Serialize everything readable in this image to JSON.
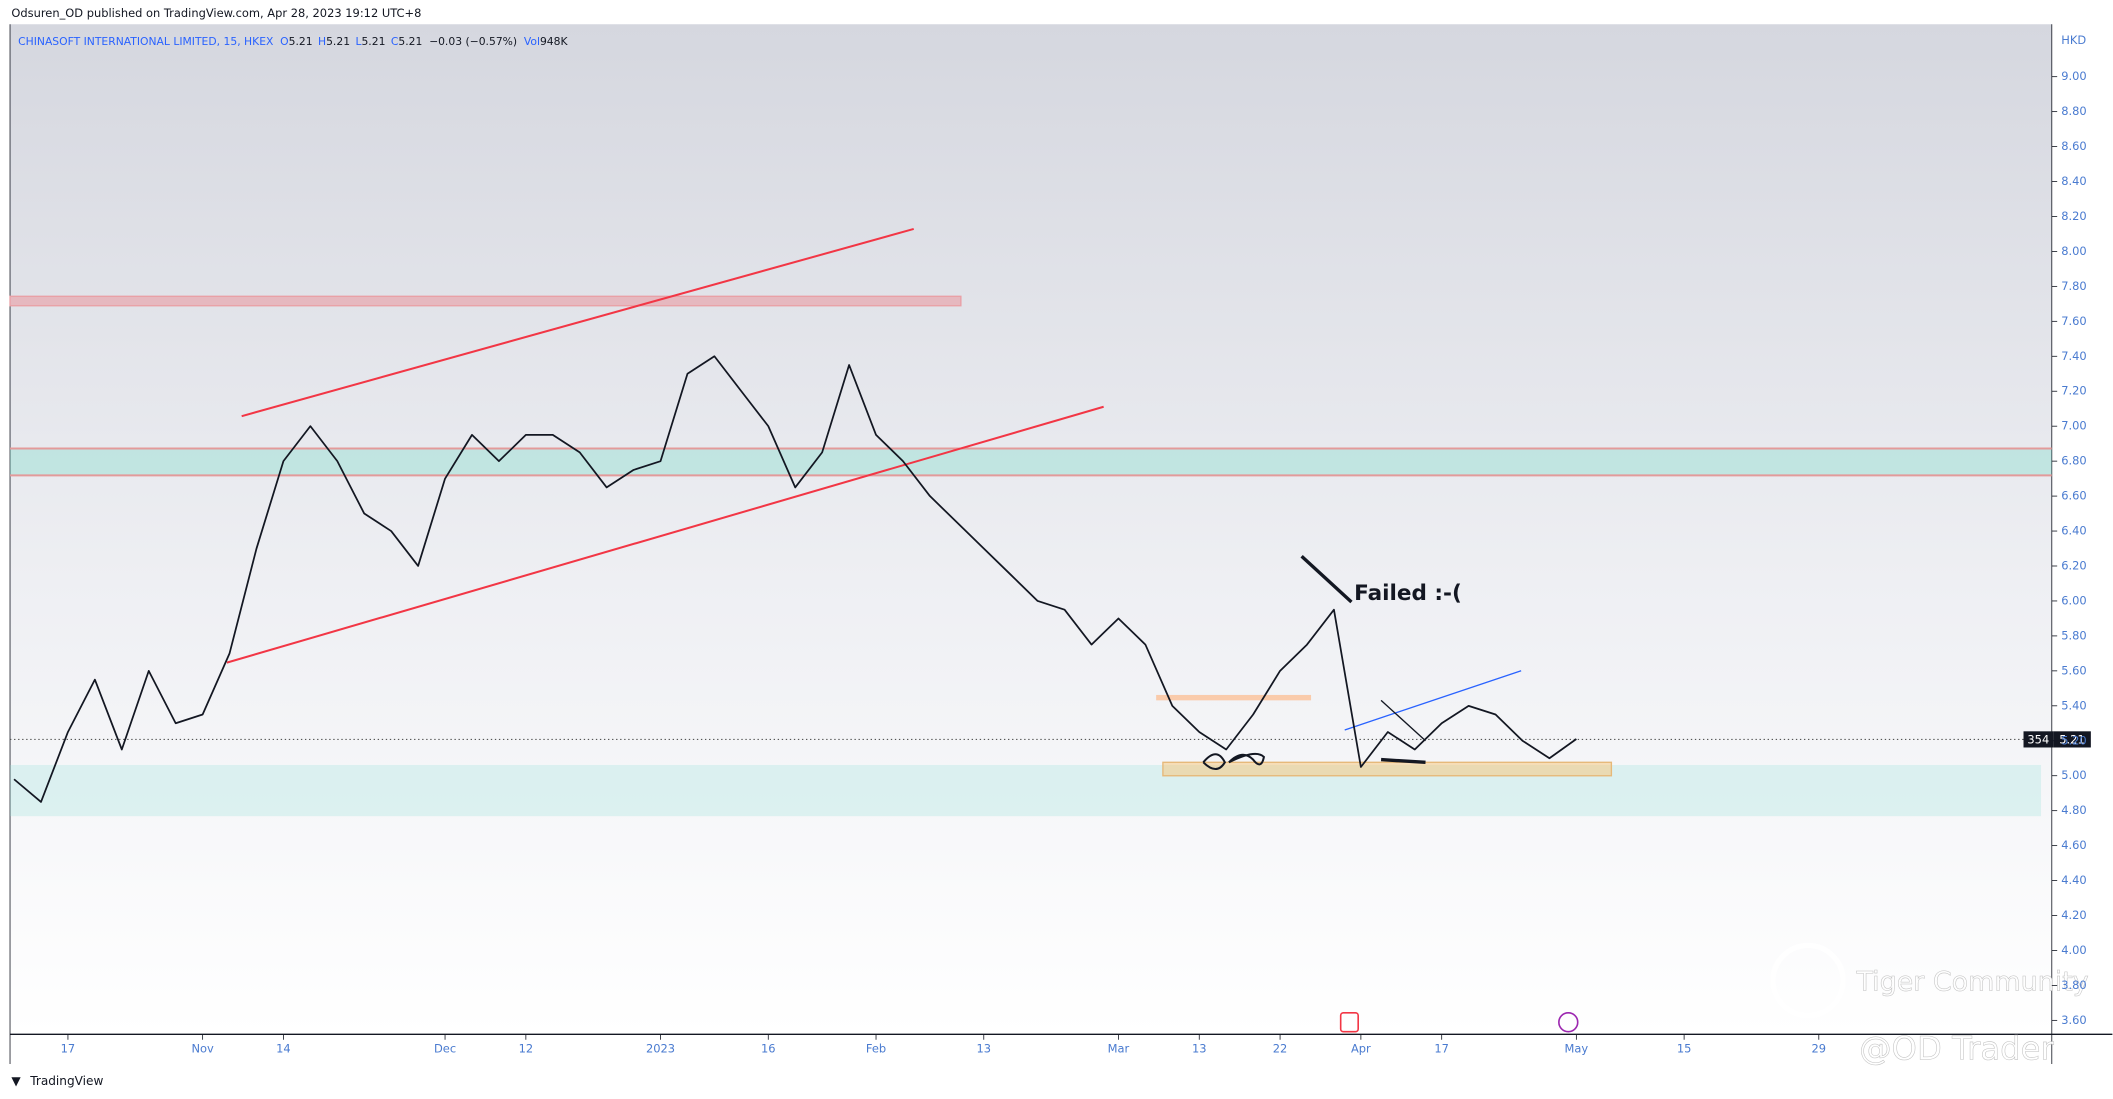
{
  "header": {
    "publisher": "Odsuren_OD published on TradingView.com, Apr 28, 2023 19:12 UTC+8",
    "footer": "TradingView"
  },
  "legend": {
    "name": "CHINASOFT INTERNATIONAL LIMITED, 15, HKEX",
    "items": [
      {
        "label": "O",
        "value": "5.21"
      },
      {
        "label": "H",
        "value": "5.21"
      },
      {
        "label": "L",
        "value": "5.21"
      },
      {
        "label": "C",
        "value": "5.21"
      }
    ],
    "change": "−0.03 (−0.57%)",
    "volume_label": "Vol",
    "volume": "948K"
  },
  "currency": "HKD",
  "price_tag": {
    "countdown": "354",
    "price": "5.21"
  },
  "annotation": "Failed :-(",
  "watermarks": [
    "Tiger Community",
    "@OD Trader"
  ],
  "chart_data": {
    "type": "line",
    "color": "#131722",
    "categories": [
      null,
      null,
      "17",
      null,
      null,
      null,
      null,
      "Nov",
      null,
      null,
      "14",
      null,
      null,
      null,
      null,
      null,
      "Dec",
      null,
      null,
      "12",
      null,
      null,
      null,
      null,
      "2023",
      null,
      null,
      null,
      "16",
      null,
      null,
      null,
      "Feb",
      null,
      null,
      null,
      "13",
      null,
      null,
      null,
      null,
      "Mar",
      null,
      null,
      "13",
      null,
      null,
      "22",
      null,
      null,
      "Apr",
      null,
      null,
      "17",
      null,
      null,
      null,
      null,
      "May",
      null,
      null,
      null,
      "15",
      null,
      null,
      null,
      null,
      "29",
      null,
      null,
      null,
      null,
      null,
      null,
      null,
      null
    ],
    "values": [
      4.98,
      4.85,
      5.25,
      5.55,
      5.15,
      5.6,
      5.3,
      5.35,
      5.7,
      6.3,
      6.8,
      7.0,
      6.8,
      6.5,
      6.4,
      6.2,
      6.7,
      6.95,
      6.8,
      6.95,
      6.95,
      6.85,
      6.65,
      6.75,
      6.8,
      7.3,
      7.4,
      7.2,
      7.0,
      6.65,
      6.85,
      7.35,
      6.95,
      6.8,
      6.6,
      6.45,
      6.3,
      6.15,
      6.0,
      5.95,
      5.75,
      5.9,
      5.75,
      5.4,
      5.25,
      5.15,
      5.35,
      5.6,
      5.75,
      5.95,
      5.05,
      5.25,
      5.15,
      5.3,
      5.4,
      5.35,
      5.2,
      5.1,
      5.21,
      null,
      null,
      null,
      null,
      null,
      null,
      null,
      null,
      null,
      null,
      null,
      null,
      null,
      null,
      null,
      null,
      null
    ],
    "ylim": [
      3.52,
      9.3
    ],
    "yticks": [
      {
        "value": 3.6,
        "label": "3.60"
      },
      {
        "value": 3.8,
        "label": "3.80"
      },
      {
        "value": 4,
        "label": "4.00"
      },
      {
        "value": 4.2,
        "label": "4.20"
      },
      {
        "value": 4.4,
        "label": "4.40"
      },
      {
        "value": 4.6,
        "label": "4.60"
      },
      {
        "value": 4.8,
        "label": "4.80"
      },
      {
        "value": 5,
        "label": "5.00"
      },
      {
        "value": 5.2,
        "label": "5.20"
      },
      {
        "value": 5.4,
        "label": "5.40"
      },
      {
        "value": 5.6,
        "label": "5.60"
      },
      {
        "value": 5.8,
        "label": "5.80"
      },
      {
        "value": 6,
        "label": "6.00"
      },
      {
        "value": 6.2,
        "label": "6.20"
      },
      {
        "value": 6.4,
        "label": "6.40"
      },
      {
        "value": 6.6,
        "label": "6.60"
      },
      {
        "value": 6.8,
        "label": "6.80"
      },
      {
        "value": 7,
        "label": "7.00"
      },
      {
        "value": 7.2,
        "label": "7.20"
      },
      {
        "value": 7.4,
        "label": "7.40"
      },
      {
        "value": 7.6,
        "label": "7.60"
      },
      {
        "value": 7.8,
        "label": "7.80"
      },
      {
        "value": 8,
        "label": "8.00"
      },
      {
        "value": 8.2,
        "label": "8.20"
      },
      {
        "value": 8.4,
        "label": "8.40"
      },
      {
        "value": 8.6,
        "label": "8.60"
      },
      {
        "value": 8.8,
        "label": "8.80"
      },
      {
        "value": 9,
        "label": "9.00"
      }
    ],
    "grid": false
  }
}
